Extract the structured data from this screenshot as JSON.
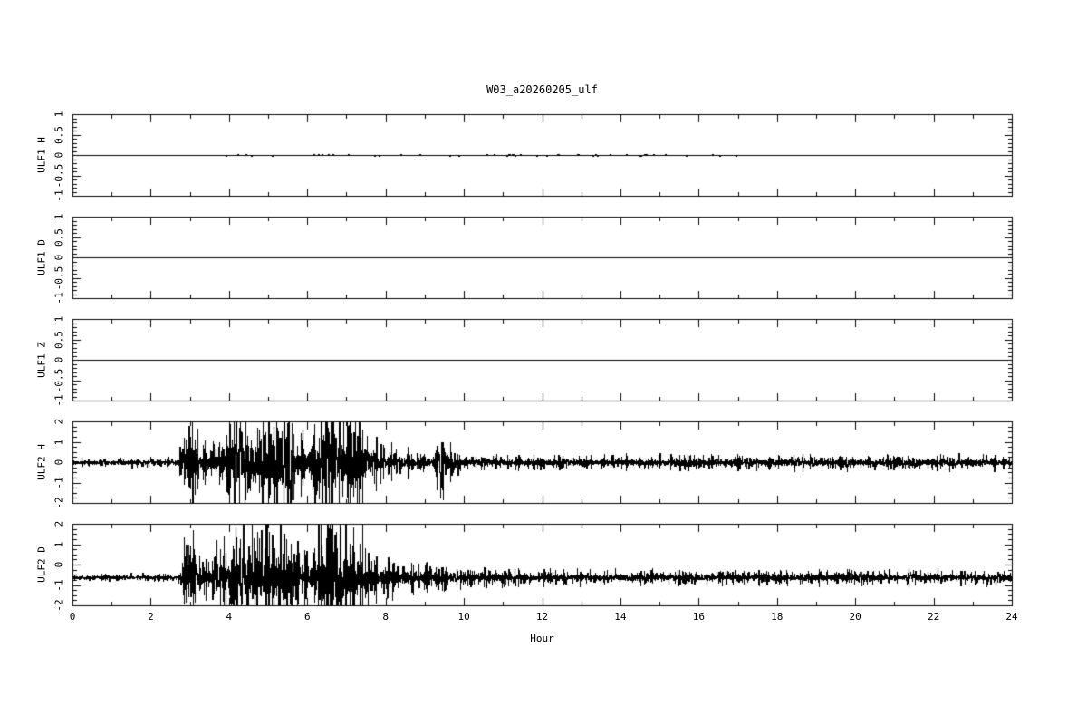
{
  "title": "W03_a20260205_ulf",
  "colors": {
    "foreground": "#000000",
    "background": "#ffffff"
  },
  "chart_data": {
    "type": "line",
    "title": "W03_a20260205_ulf",
    "x": {
      "label": "Hour",
      "range": [
        0,
        24
      ],
      "major_step": 2,
      "minor_step": 1,
      "tick_labels": [
        "0",
        "2",
        "4",
        "6",
        "8",
        "10",
        "12",
        "14",
        "16",
        "18",
        "20",
        "22",
        "24"
      ]
    },
    "panels": [
      {
        "label": "ULF1 H",
        "ylim": [
          -1,
          1
        ],
        "ytick_labels": [
          "1",
          "0.5",
          "0",
          "-0.5",
          "-1"
        ],
        "ytick_major": 0.5,
        "ytick_minor": 0.1,
        "baseline": 0,
        "signal": {
          "kind": "flat_with_blips",
          "region": [
            3.2,
            17.5
          ],
          "density": 0.07,
          "amplitude": 0.035,
          "seed": 11
        }
      },
      {
        "label": "ULF1 D",
        "ylim": [
          -1,
          1
        ],
        "ytick_labels": [
          "1",
          "0.5",
          "0",
          "-0.5",
          "-1"
        ],
        "ytick_major": 0.5,
        "ytick_minor": 0.1,
        "baseline": 0,
        "signal": {
          "kind": "flat"
        }
      },
      {
        "label": "ULF1 Z",
        "ylim": [
          -1,
          1
        ],
        "ytick_labels": [
          "1",
          "0.5",
          "0",
          "-0.5",
          "-1"
        ],
        "ytick_major": 0.5,
        "ytick_minor": 0.1,
        "baseline": 0,
        "signal": {
          "kind": "flat"
        }
      },
      {
        "label": "ULF2 H",
        "ylim": [
          -2,
          2
        ],
        "ytick_labels": [
          "2",
          "1",
          "0",
          "-1",
          "-2"
        ],
        "ytick_major": 1,
        "ytick_minor": 0.25,
        "baseline": 0,
        "signal": {
          "kind": "noise_bursts",
          "seed": 42,
          "envelope": [
            [
              0,
              0.16
            ],
            [
              2.55,
              0.16
            ],
            [
              2.7,
              0.3
            ],
            [
              2.8,
              2.6
            ],
            [
              3.05,
              2.4
            ],
            [
              3.2,
              0.9
            ],
            [
              3.5,
              0.85
            ],
            [
              3.75,
              1.1
            ],
            [
              3.95,
              2.6
            ],
            [
              4.2,
              2.3
            ],
            [
              4.45,
              2.7
            ],
            [
              4.7,
              2.4
            ],
            [
              4.95,
              2.7
            ],
            [
              5.2,
              2.8
            ],
            [
              5.5,
              2.0
            ],
            [
              5.75,
              1.2
            ],
            [
              6.0,
              1.1
            ],
            [
              6.25,
              2.6
            ],
            [
              6.5,
              3.0
            ],
            [
              6.75,
              2.9
            ],
            [
              7.0,
              2.5
            ],
            [
              7.25,
              2.7
            ],
            [
              7.45,
              1.8
            ],
            [
              7.6,
              1.0
            ],
            [
              7.9,
              0.75
            ],
            [
              8.3,
              0.55
            ],
            [
              8.7,
              0.42
            ],
            [
              9.1,
              0.38
            ],
            [
              9.25,
              0.55
            ],
            [
              9.35,
              1.6
            ],
            [
              9.55,
              1.5
            ],
            [
              9.7,
              0.6
            ],
            [
              9.9,
              0.33
            ],
            [
              10.5,
              0.28
            ],
            [
              12,
              0.26
            ],
            [
              16,
              0.25
            ],
            [
              20,
              0.26
            ],
            [
              24,
              0.27
            ]
          ]
        }
      },
      {
        "label": "ULF2 D",
        "ylim": [
          -2,
          2
        ],
        "ytick_labels": [
          "2",
          "1",
          "0",
          "-1",
          "-2"
        ],
        "ytick_major": 1,
        "ytick_minor": 0.25,
        "baseline": -0.62,
        "signal": {
          "kind": "noise_bursts",
          "seed": 77,
          "envelope": [
            [
              0,
              0.12
            ],
            [
              2.55,
              0.12
            ],
            [
              2.7,
              0.25
            ],
            [
              2.85,
              2.2
            ],
            [
              3.0,
              1.6
            ],
            [
              3.2,
              0.8
            ],
            [
              3.5,
              0.75
            ],
            [
              3.8,
              1.3
            ],
            [
              4.0,
              1.9
            ],
            [
              4.25,
              2.4
            ],
            [
              4.5,
              2.7
            ],
            [
              4.75,
              2.5
            ],
            [
              5.0,
              2.5
            ],
            [
              5.25,
              2.2
            ],
            [
              5.5,
              1.6
            ],
            [
              5.75,
              1.1
            ],
            [
              6.0,
              1.0
            ],
            [
              6.25,
              2.4
            ],
            [
              6.5,
              2.9
            ],
            [
              6.75,
              2.8
            ],
            [
              7.0,
              2.4
            ],
            [
              7.3,
              2.5
            ],
            [
              7.5,
              1.4
            ],
            [
              7.7,
              0.9
            ],
            [
              8.0,
              0.75
            ],
            [
              8.4,
              0.65
            ],
            [
              8.9,
              0.55
            ],
            [
              9.3,
              0.6
            ],
            [
              9.6,
              0.45
            ],
            [
              9.9,
              0.33
            ],
            [
              11,
              0.28
            ],
            [
              16,
              0.26
            ],
            [
              20,
              0.26
            ],
            [
              24,
              0.27
            ]
          ]
        }
      }
    ]
  }
}
